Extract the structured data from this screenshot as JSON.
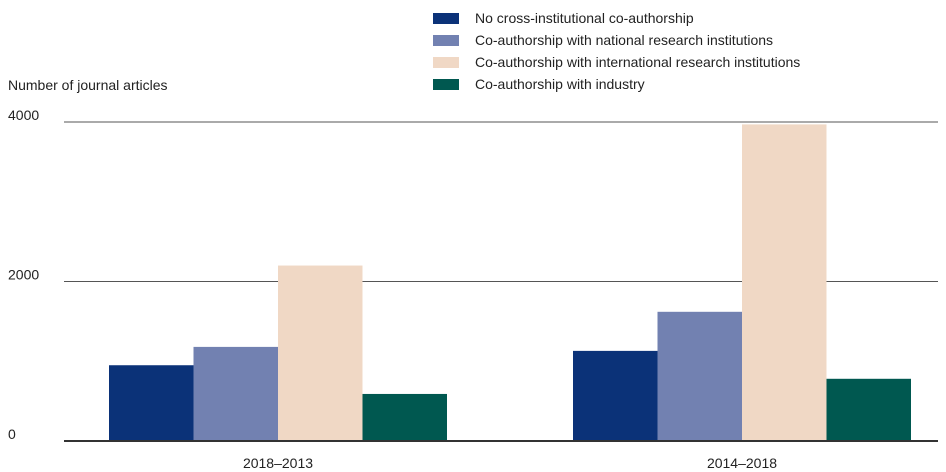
{
  "chart_data": {
    "type": "bar",
    "title": "",
    "ylabel": "Number of journal articles",
    "xlabel": "",
    "categories": [
      "2018–2013",
      "2014–2018"
    ],
    "ylim": [
      0,
      4000
    ],
    "yticks": [
      0,
      2000,
      4000
    ],
    "grid": "horizontal",
    "legend_position": "top-right",
    "series": [
      {
        "name": "No cross-institutional co-authorship",
        "color": "#0b3278",
        "values": [
          950,
          1130
        ]
      },
      {
        "name": "Co-authorship with national research institutions",
        "color": "#7281b1",
        "values": [
          1180,
          1620
        ]
      },
      {
        "name": "Co-authorship with international research institutions",
        "color": "#f0d8c5",
        "values": [
          2200,
          3970
        ]
      },
      {
        "name": "Co-authorship with industry",
        "color": "#005850",
        "values": [
          590,
          780
        ]
      }
    ],
    "axis_color": "#333333",
    "grid_color": "#555555"
  }
}
